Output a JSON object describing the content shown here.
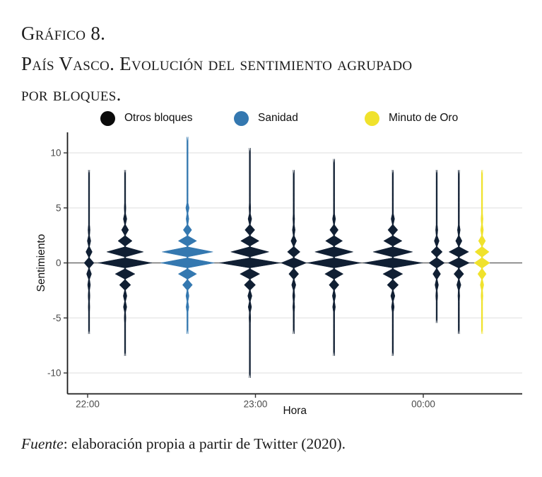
{
  "figure": {
    "title_line1": "Gráfico 8.",
    "title_line2": "País Vasco. Evolución del sentimiento agrupado",
    "title_line3": "por bloques.",
    "source_prefix": "Fuente",
    "source_rest": ": elaboración propia a partir de Twitter (2020)."
  },
  "legend": {
    "items": [
      {
        "label": "Otros bloques",
        "group": "otros",
        "color": "#0b0b0b"
      },
      {
        "label": "Sanidad",
        "group": "sanidad",
        "color": "#3478b0"
      },
      {
        "label": "Minuto de Oro",
        "group": "minuto",
        "color": "#f0e22c"
      }
    ]
  },
  "chart_data": {
    "type": "violin",
    "title": "",
    "xlabel": "Hora",
    "ylabel": "Sentimiento",
    "x_ticks": [
      "22:00",
      "23:00",
      "00:00"
    ],
    "x_tick_minutes": [
      0,
      60,
      120
    ],
    "y_ticks": [
      -10,
      -5,
      0,
      5,
      10
    ],
    "ylim": [
      -10.5,
      11.5
    ],
    "grid": "horizontal-light",
    "zero_line": true,
    "legend_position": "top",
    "group_colors": {
      "otros": "#101f33",
      "sanidad": "#3478b0",
      "minuto": "#f0e22c"
    },
    "violins": [
      {
        "group": "otros",
        "minutes_after_2200": 0.5,
        "min": -6,
        "max": 8,
        "widths": {
          "3": 1.5,
          "2": 2.5,
          "1": 4.5,
          "0": 7,
          "-1": 3.5,
          "-2": 2,
          "-3": 1.3,
          "-4": 1.1
        }
      },
      {
        "group": "otros",
        "minutes_after_2200": 13.4,
        "min": -8,
        "max": 8,
        "widths": {
          "5": 1.2,
          "4": 2.5,
          "3": 5,
          "2": 10,
          "1": 26,
          "0": 38,
          "-1": 14,
          "-2": 8,
          "-3": 2.6,
          "-4": 2.4,
          "-5": 1.2
        }
      },
      {
        "group": "sanidad",
        "minutes_after_2200": 35.7,
        "min": -6,
        "max": 11,
        "widths": {
          "5": 2.4,
          "4": 2,
          "3": 6,
          "2": 13,
          "1": 36,
          "0": 38,
          "-1": 13,
          "-2": 7,
          "-3": 2.2,
          "-4": 2
        }
      },
      {
        "group": "otros",
        "minutes_after_2200": 58,
        "min": -10,
        "max": 10,
        "widths": {
          "5": 1.2,
          "4": 2.6,
          "3": 7,
          "2": 13,
          "1": 27,
          "0": 43,
          "-1": 14,
          "-2": 8,
          "-3": 3,
          "-4": 2.4,
          "-5": 1.2
        }
      },
      {
        "group": "otros",
        "minutes_after_2200": 73.7,
        "min": -6,
        "max": 8,
        "widths": {
          "4": 1.3,
          "3": 2,
          "2": 4,
          "1": 9,
          "0": 18,
          "-1": 7,
          "-2": 3,
          "-3": 1.6,
          "-4": 1.4
        }
      },
      {
        "group": "otros",
        "minutes_after_2200": 88.1,
        "min": -8,
        "max": 9,
        "widths": {
          "4": 2.2,
          "3": 6,
          "2": 12,
          "1": 27,
          "0": 38,
          "-1": 13,
          "-2": 7,
          "-3": 2.4,
          "-4": 2
        }
      },
      {
        "group": "otros",
        "minutes_after_2200": 109.1,
        "min": -8,
        "max": 8,
        "widths": {
          "4": 2.5,
          "3": 7,
          "2": 13,
          "1": 28,
          "0": 42,
          "-1": 14,
          "-2": 8,
          "-3": 3,
          "-4": 2
        }
      },
      {
        "group": "otros",
        "minutes_after_2200": 124.8,
        "min": -5,
        "max": 8,
        "widths": {
          "3": 1.6,
          "2": 3.5,
          "1": 8,
          "0": 11,
          "-1": 5.5,
          "-2": 2.5,
          "-3": 1.4
        }
      },
      {
        "group": "otros",
        "minutes_after_2200": 132.7,
        "min": -6,
        "max": 8,
        "widths": {
          "3": 2,
          "2": 4.5,
          "1": 14,
          "0": 15,
          "-1": 7,
          "-2": 3,
          "-3": 1.3
        }
      },
      {
        "group": "minuto",
        "minutes_after_2200": 141,
        "min": -6,
        "max": 8,
        "widths": {
          "4": 1.5,
          "3": 2,
          "2": 5,
          "1": 10,
          "0": 11,
          "-1": 6,
          "-2": 2.5,
          "-3": 1.4
        }
      }
    ],
    "style_colors": {
      "gridline": "#e9e9e9",
      "zero_line": "#595959",
      "axis_line": "#1a1a1a",
      "tick_label": "#4a4a4a",
      "axis_title": "#111111"
    }
  }
}
